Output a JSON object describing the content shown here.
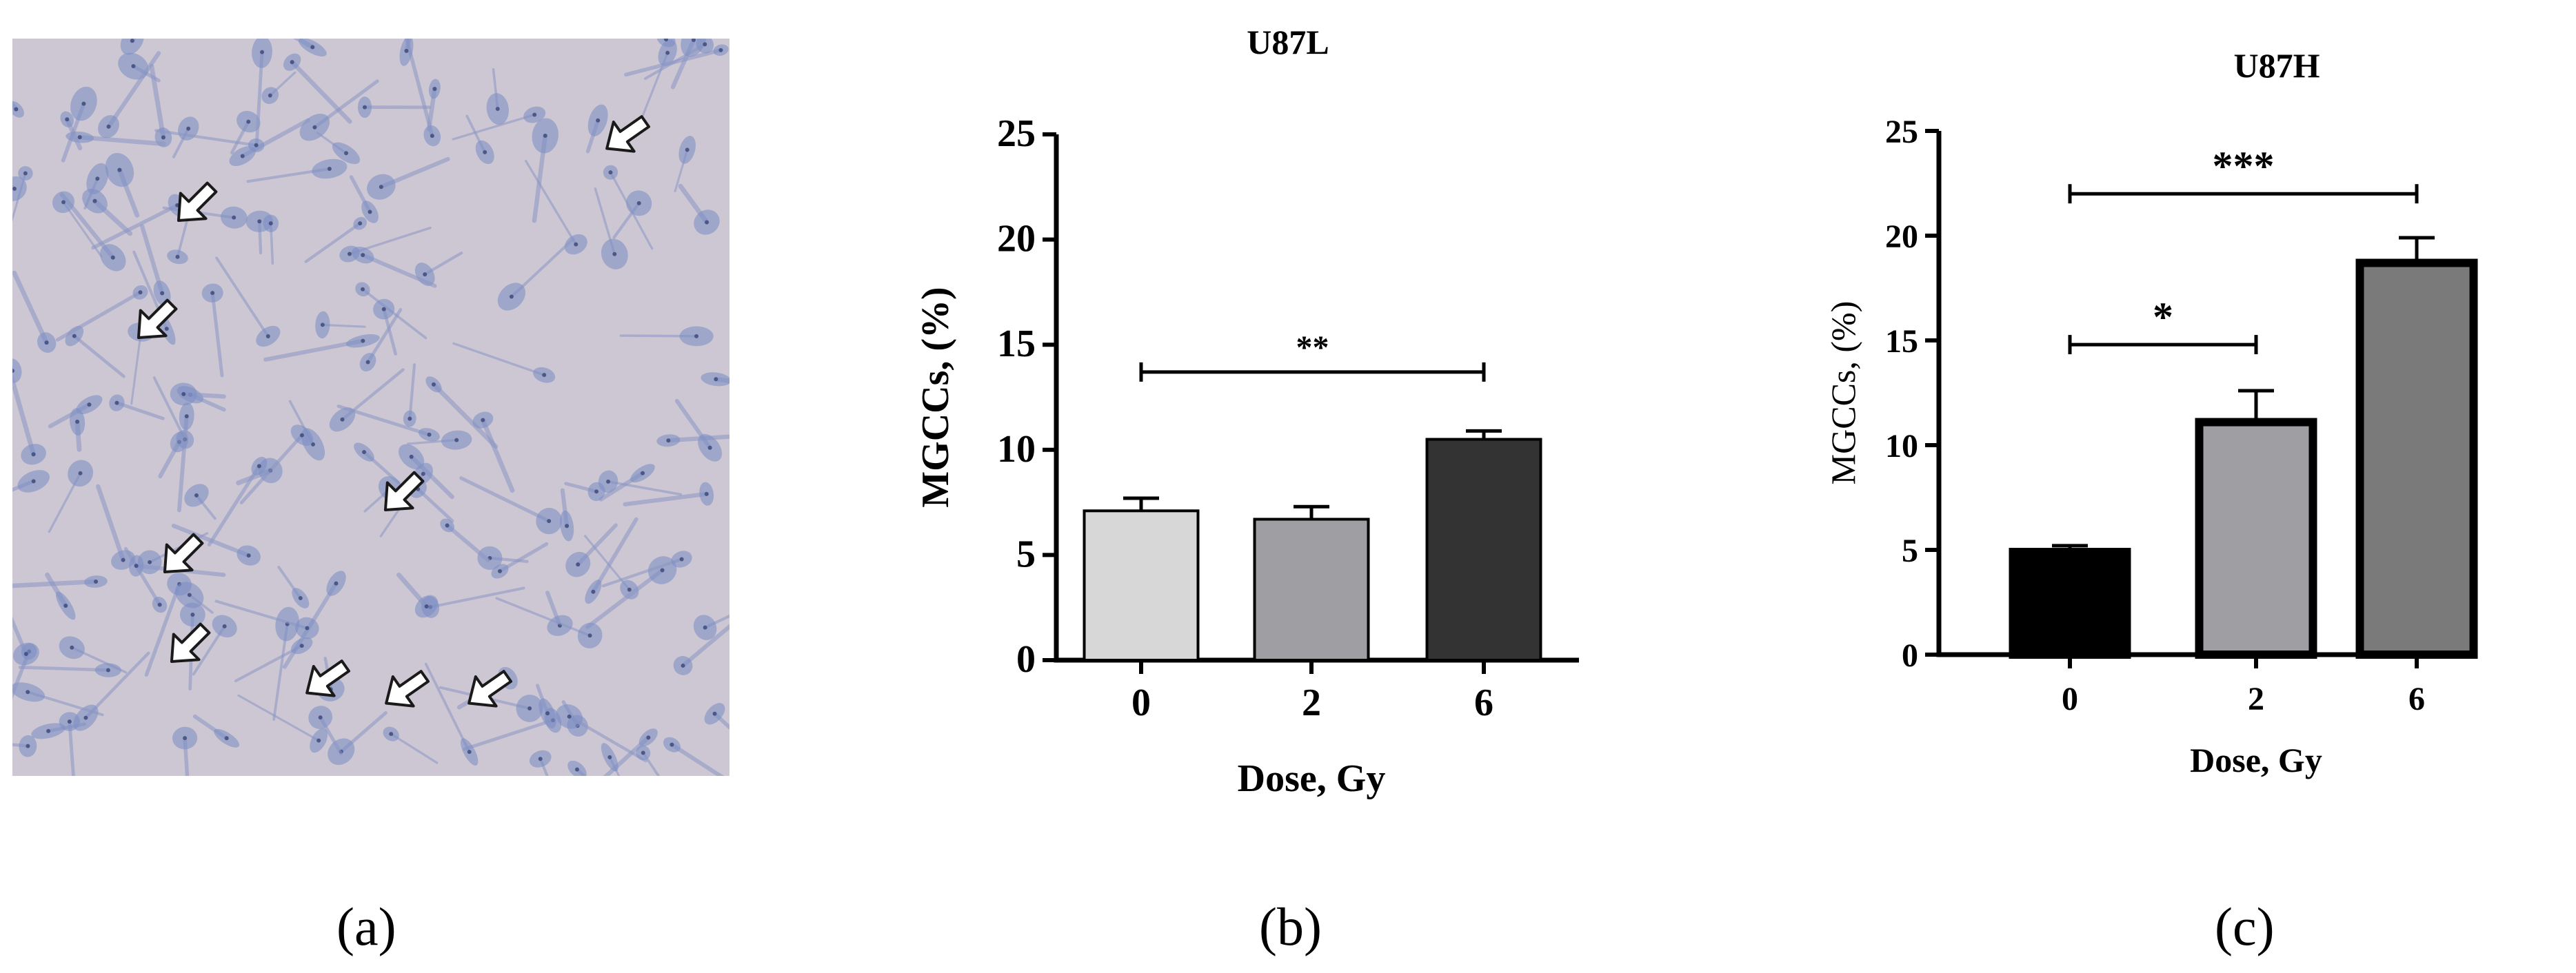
{
  "panels": [
    {
      "label": "(a)"
    },
    {
      "label": "(b)"
    },
    {
      "label": "(c)"
    }
  ],
  "micrograph": {
    "arrow_icon": "white-arrow-icon"
  },
  "colors": {
    "background": "#ffffff",
    "micro_bg": "#cdc7d3",
    "cell": "#7f8fc4",
    "bar_light": "#d7d7d7",
    "bar_mid": "#9e9ea3",
    "bar_dark": "#333333",
    "bar_black": "#000000",
    "bar_grey": "#7a7a7a"
  },
  "chart_data": [
    {
      "type": "bar",
      "title": "U87L",
      "xlabel": "Dose, Gy",
      "ylabel": "MGCCs, (%)",
      "categories": [
        "0",
        "2",
        "6"
      ],
      "values": [
        7.1,
        6.7,
        10.5
      ],
      "errors": [
        0.6,
        0.6,
        0.4
      ],
      "yticks": [
        "0",
        "5",
        "10",
        "15",
        "20",
        "25"
      ],
      "ylim": [
        0,
        25
      ],
      "bar_colors": [
        "#d7d7d7",
        "#9e9ea3",
        "#333333"
      ],
      "significance": [
        {
          "from": "0",
          "to": "6",
          "label": "**",
          "y": 13.7
        }
      ]
    },
    {
      "type": "bar",
      "title": "U87H",
      "xlabel": "Dose, Gy",
      "ylabel": "MGCCs, (%)",
      "categories": [
        "0",
        "2",
        "6"
      ],
      "values": [
        4.9,
        11.1,
        18.7
      ],
      "errors": [
        0.3,
        1.5,
        1.2
      ],
      "yticks": [
        "0",
        "5",
        "10",
        "15",
        "20",
        "25"
      ],
      "ylim": [
        0,
        25
      ],
      "bar_colors": [
        "#000000",
        "#9e9ea3",
        "#7a7a7a"
      ],
      "significance": [
        {
          "from": "0",
          "to": "6",
          "label": "***",
          "y": 22
        },
        {
          "from": "0",
          "to": "2",
          "label": "*",
          "y": 14.8
        }
      ]
    }
  ]
}
